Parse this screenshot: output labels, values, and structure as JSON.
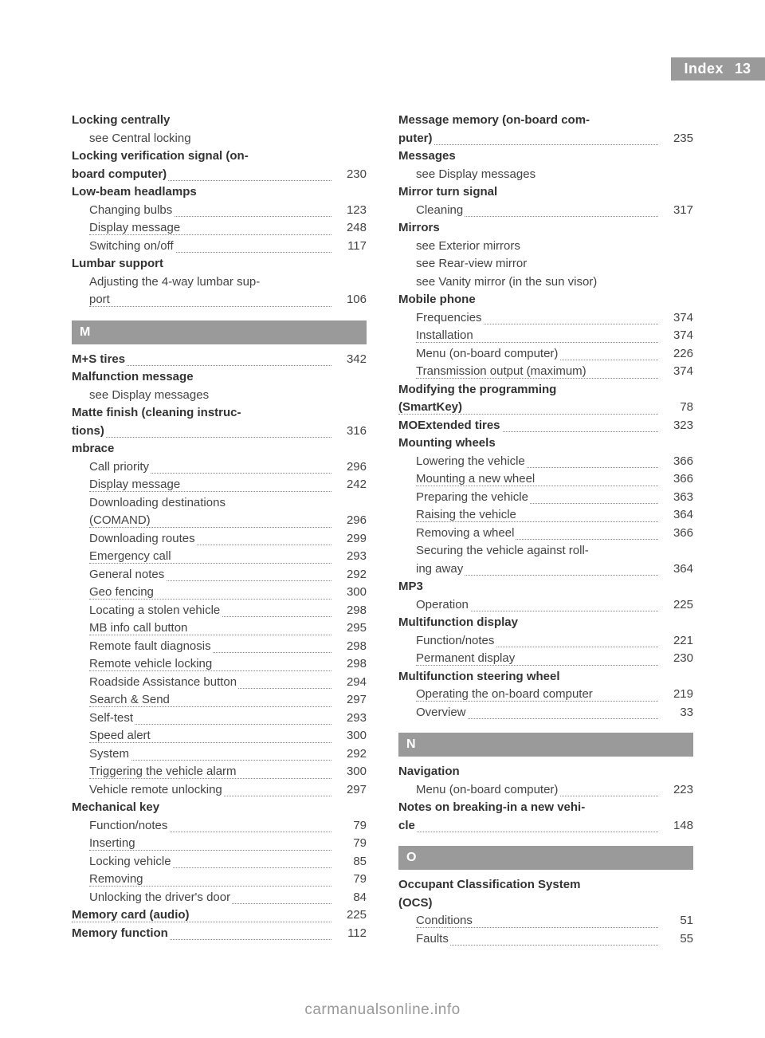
{
  "header": {
    "title": "Index",
    "page": "13"
  },
  "footer": {
    "text": "carmanualsonline.info"
  },
  "sections": {
    "M": "M",
    "N": "N",
    "O": "O"
  },
  "left": [
    {
      "type": "head",
      "text": "Locking centrally"
    },
    {
      "type": "sub-nopage",
      "text": "see Central locking"
    },
    {
      "type": "head-line1",
      "text": "Locking verification signal (on-"
    },
    {
      "type": "head-cont",
      "bold": "board computer)",
      "page": "230"
    },
    {
      "type": "head",
      "text": "Low-beam headlamps"
    },
    {
      "type": "sub",
      "text": "Changing bulbs",
      "page": "123"
    },
    {
      "type": "sub",
      "text": "Display message",
      "page": "248"
    },
    {
      "type": "sub",
      "text": "Switching on/off",
      "page": "117"
    },
    {
      "type": "head",
      "text": "Lumbar support"
    },
    {
      "type": "sub-line1",
      "text": "Adjusting the 4-way lumbar sup-"
    },
    {
      "type": "sub-cont",
      "text": "port",
      "page": "106"
    },
    {
      "type": "section",
      "key": "M"
    },
    {
      "type": "head-page",
      "text": "M+S tires",
      "page": "342"
    },
    {
      "type": "head",
      "text": "Malfunction message"
    },
    {
      "type": "sub-nopage",
      "text": "see Display messages"
    },
    {
      "type": "head-line1",
      "text": "Matte finish (cleaning instruc-"
    },
    {
      "type": "head-cont",
      "bold": "tions)",
      "page": "316"
    },
    {
      "type": "head",
      "text": "mbrace"
    },
    {
      "type": "sub",
      "text": "Call priority",
      "page": "296"
    },
    {
      "type": "sub",
      "text": "Display message",
      "page": "242"
    },
    {
      "type": "sub-line1",
      "text": "Downloading destinations"
    },
    {
      "type": "sub-cont",
      "text": "(COMAND)",
      "page": "296"
    },
    {
      "type": "sub",
      "text": "Downloading routes",
      "page": "299"
    },
    {
      "type": "sub",
      "text": "Emergency call",
      "page": "293"
    },
    {
      "type": "sub",
      "text": "General notes",
      "page": "292"
    },
    {
      "type": "sub",
      "text": "Geo fencing",
      "page": "300"
    },
    {
      "type": "sub",
      "text": "Locating a stolen vehicle",
      "page": "298"
    },
    {
      "type": "sub",
      "text": "MB info call button",
      "page": "295"
    },
    {
      "type": "sub",
      "text": "Remote fault diagnosis",
      "page": "298"
    },
    {
      "type": "sub",
      "text": "Remote vehicle locking",
      "page": "298"
    },
    {
      "type": "sub",
      "text": "Roadside Assistance button",
      "page": "294"
    },
    {
      "type": "sub",
      "text": "Search & Send",
      "page": "297"
    },
    {
      "type": "sub",
      "text": "Self-test",
      "page": "293"
    },
    {
      "type": "sub",
      "text": "Speed alert",
      "page": "300"
    },
    {
      "type": "sub",
      "text": "System",
      "page": "292"
    },
    {
      "type": "sub",
      "text": "Triggering the vehicle alarm",
      "page": "300"
    },
    {
      "type": "sub",
      "text": "Vehicle remote unlocking",
      "page": "297"
    },
    {
      "type": "head",
      "text": "Mechanical key"
    },
    {
      "type": "sub",
      "text": "Function/notes",
      "page": "79"
    },
    {
      "type": "sub",
      "text": "Inserting",
      "page": "79"
    },
    {
      "type": "sub",
      "text": "Locking vehicle",
      "page": "85"
    },
    {
      "type": "sub",
      "text": "Removing",
      "page": "79"
    },
    {
      "type": "sub",
      "text": "Unlocking the driver's door",
      "page": "84"
    },
    {
      "type": "head-page",
      "text": "Memory card (audio)",
      "page": "225"
    },
    {
      "type": "head-page",
      "text": "Memory function",
      "page": "112"
    }
  ],
  "right": [
    {
      "type": "head-line1",
      "text": "Message memory (on-board com-"
    },
    {
      "type": "head-cont",
      "bold": "puter)",
      "page": "235"
    },
    {
      "type": "head",
      "text": "Messages"
    },
    {
      "type": "sub-nopage",
      "text": "see Display messages"
    },
    {
      "type": "head",
      "text": "Mirror turn signal"
    },
    {
      "type": "sub",
      "text": "Cleaning",
      "page": "317"
    },
    {
      "type": "head",
      "text": "Mirrors"
    },
    {
      "type": "sub-nopage",
      "text": "see Exterior mirrors"
    },
    {
      "type": "sub-nopage",
      "text": "see Rear-view mirror"
    },
    {
      "type": "sub-nopage",
      "text": "see Vanity mirror (in the sun visor)"
    },
    {
      "type": "head",
      "text": "Mobile phone"
    },
    {
      "type": "sub",
      "text": "Frequencies",
      "page": "374"
    },
    {
      "type": "sub",
      "text": "Installation",
      "page": "374"
    },
    {
      "type": "sub",
      "text": "Menu (on-board computer)",
      "page": "226"
    },
    {
      "type": "sub",
      "text": "Transmission output (maximum)",
      "page": "374"
    },
    {
      "type": "head-line1",
      "text": "Modifying the programming"
    },
    {
      "type": "head-cont",
      "bold": "(SmartKey)",
      "page": "78"
    },
    {
      "type": "head-page",
      "text": "MOExtended tires",
      "page": "323"
    },
    {
      "type": "head",
      "text": "Mounting wheels"
    },
    {
      "type": "sub",
      "text": "Lowering the vehicle",
      "page": "366"
    },
    {
      "type": "sub",
      "text": "Mounting a new wheel",
      "page": "366"
    },
    {
      "type": "sub",
      "text": "Preparing the vehicle",
      "page": "363"
    },
    {
      "type": "sub",
      "text": "Raising the vehicle",
      "page": "364"
    },
    {
      "type": "sub",
      "text": "Removing a wheel",
      "page": "366"
    },
    {
      "type": "sub-line1",
      "text": "Securing the vehicle against roll-"
    },
    {
      "type": "sub-cont",
      "text": "ing away",
      "page": "364"
    },
    {
      "type": "head",
      "text": "MP3"
    },
    {
      "type": "sub",
      "text": "Operation",
      "page": "225"
    },
    {
      "type": "head",
      "text": "Multifunction display"
    },
    {
      "type": "sub",
      "text": "Function/notes",
      "page": "221"
    },
    {
      "type": "sub",
      "text": "Permanent display",
      "page": "230"
    },
    {
      "type": "head",
      "text": "Multifunction steering wheel"
    },
    {
      "type": "sub",
      "text": "Operating the on-board computer",
      "page": "219"
    },
    {
      "type": "sub",
      "text": "Overview",
      "page": "33"
    },
    {
      "type": "section",
      "key": "N"
    },
    {
      "type": "head",
      "text": "Navigation"
    },
    {
      "type": "sub",
      "text": "Menu (on-board computer)",
      "page": "223"
    },
    {
      "type": "head-line1",
      "text": "Notes on breaking-in a new vehi-"
    },
    {
      "type": "head-cont",
      "bold": "cle",
      "page": "148"
    },
    {
      "type": "section",
      "key": "O"
    },
    {
      "type": "head-line1",
      "text": "Occupant Classification System"
    },
    {
      "type": "head-line2",
      "text": "(OCS)"
    },
    {
      "type": "sub",
      "text": "Conditions",
      "page": "51"
    },
    {
      "type": "sub",
      "text": "Faults",
      "page": "55"
    }
  ]
}
